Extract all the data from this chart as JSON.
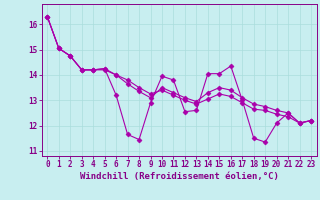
{
  "xlabel": "Windchill (Refroidissement éolien,°C)",
  "ylabel": "",
  "bg_color": "#c8eef0",
  "line_color": "#aa00aa",
  "grid_color": "#aadddd",
  "xlim": [
    -0.5,
    23.5
  ],
  "ylim": [
    10.8,
    16.8
  ],
  "yticks": [
    11,
    12,
    13,
    14,
    15,
    16
  ],
  "xticks": [
    0,
    1,
    2,
    3,
    4,
    5,
    6,
    7,
    8,
    9,
    10,
    11,
    12,
    13,
    14,
    15,
    16,
    17,
    18,
    19,
    20,
    21,
    22,
    23
  ],
  "series": [
    [
      16.3,
      15.05,
      14.75,
      14.2,
      14.2,
      14.25,
      13.2,
      11.65,
      11.45,
      12.9,
      13.95,
      13.8,
      12.55,
      12.6,
      14.05,
      14.05,
      14.35,
      13.0,
      11.5,
      11.35,
      12.1,
      12.5,
      12.1,
      12.2
    ],
    [
      16.3,
      15.05,
      14.75,
      14.2,
      14.2,
      14.25,
      14.0,
      13.65,
      13.35,
      13.1,
      13.5,
      13.3,
      13.1,
      12.95,
      13.3,
      13.5,
      13.4,
      13.1,
      12.85,
      12.75,
      12.6,
      12.5,
      12.1,
      12.2
    ],
    [
      16.3,
      15.05,
      14.75,
      14.2,
      14.2,
      14.2,
      14.0,
      13.8,
      13.5,
      13.25,
      13.4,
      13.2,
      13.0,
      12.85,
      13.05,
      13.25,
      13.15,
      12.9,
      12.65,
      12.6,
      12.45,
      12.35,
      12.1,
      12.2
    ]
  ],
  "marker": "D",
  "markersize": 2.5,
  "linewidth": 0.8,
  "tick_fontsize": 5.5,
  "label_fontsize": 6.5,
  "axis_color": "#880088",
  "spine_color": "#880088"
}
